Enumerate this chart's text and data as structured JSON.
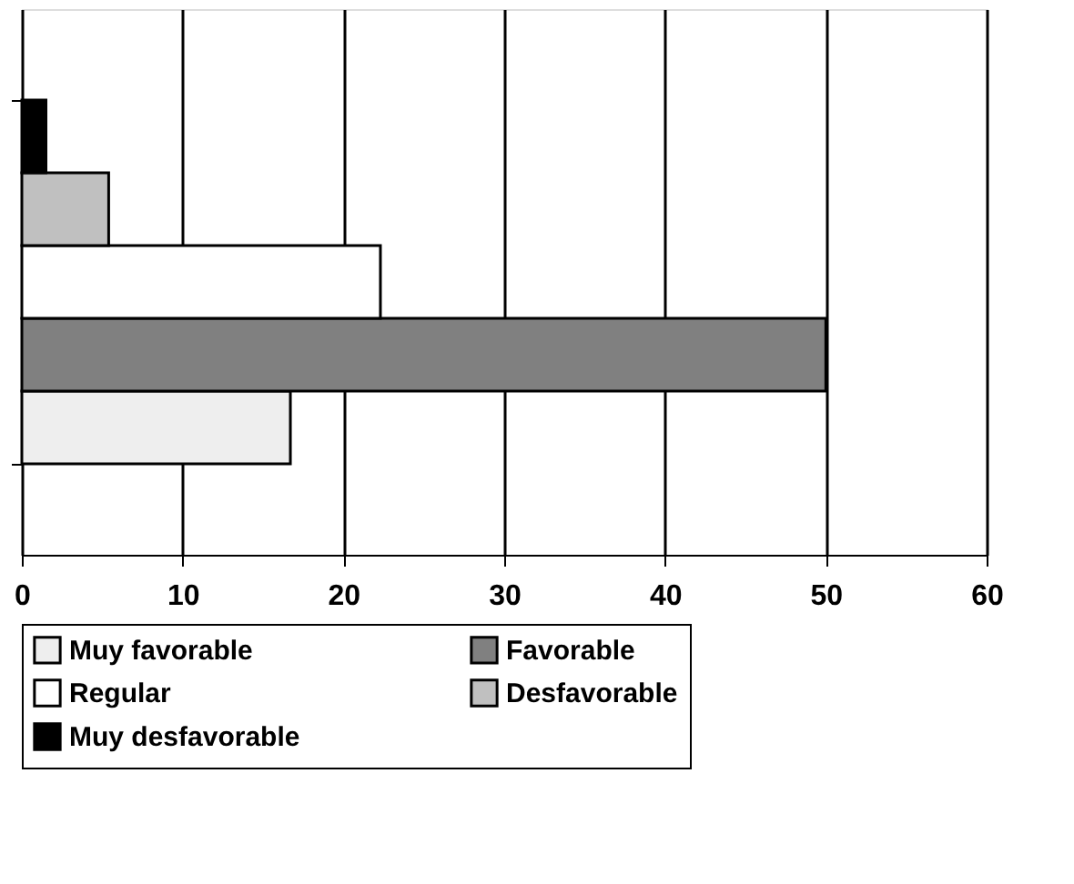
{
  "chart_data": {
    "type": "bar",
    "orientation": "horizontal",
    "categories": [
      null
    ],
    "series": [
      {
        "name": "Muy favorable",
        "color": "#eeeeee",
        "values": [
          16.7
        ]
      },
      {
        "name": "Favorable",
        "color": "#808080",
        "values": [
          50
        ]
      },
      {
        "name": "Regular",
        "color": "#ffffff",
        "values": [
          22.3
        ]
      },
      {
        "name": "Desfavorable",
        "color": "#c0c0c0",
        "values": [
          5.4
        ]
      },
      {
        "name": "Muy desfavorable",
        "color": "#000000",
        "values": [
          1.5
        ]
      }
    ],
    "xlim": [
      0,
      60
    ],
    "xticks": [
      0,
      10,
      20,
      30,
      40,
      50,
      60
    ],
    "grid": "x",
    "legend": "bottom",
    "tick_labels": "x"
  }
}
